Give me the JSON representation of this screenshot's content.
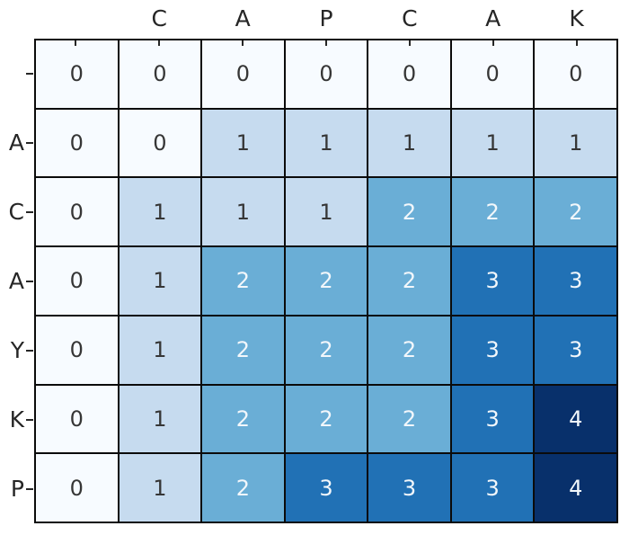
{
  "figure": {
    "background_color": "#ffffff",
    "description": "Annotated heatmap matrix (LCS dynamic-programming table style)"
  },
  "chart_data": {
    "type": "heatmap",
    "title": "",
    "xlabel": "",
    "ylabel": "",
    "x_tick_labels": [
      "",
      "C",
      "A",
      "P",
      "C",
      "A",
      "K"
    ],
    "y_tick_labels": [
      "",
      "A",
      "C",
      "A",
      "Y",
      "K",
      "P"
    ],
    "values": [
      [
        0,
        0,
        0,
        0,
        0,
        0,
        0
      ],
      [
        0,
        0,
        1,
        1,
        1,
        1,
        1
      ],
      [
        0,
        1,
        1,
        1,
        2,
        2,
        2
      ],
      [
        0,
        1,
        2,
        2,
        2,
        3,
        3
      ],
      [
        0,
        1,
        2,
        2,
        2,
        3,
        3
      ],
      [
        0,
        1,
        2,
        2,
        2,
        3,
        4
      ],
      [
        0,
        1,
        2,
        3,
        3,
        3,
        4
      ]
    ],
    "value_range": [
      0,
      4
    ],
    "colormap": "Blues",
    "annotations": true,
    "grid_on": true,
    "legend_position": "none",
    "colors": {
      "cell_by_value": {
        "0": "#f7fbff",
        "1": "#c6dbef",
        "2": "#6aaed6",
        "3": "#2171b5",
        "4": "#08306b"
      },
      "grid_line": "#0b0b0b",
      "annotation_dark_text": "#363636",
      "annotation_light_text": "#f2f7fb",
      "axis_label": "#262626",
      "tick_mark": "#262626"
    },
    "light_text_min_value": 2
  }
}
